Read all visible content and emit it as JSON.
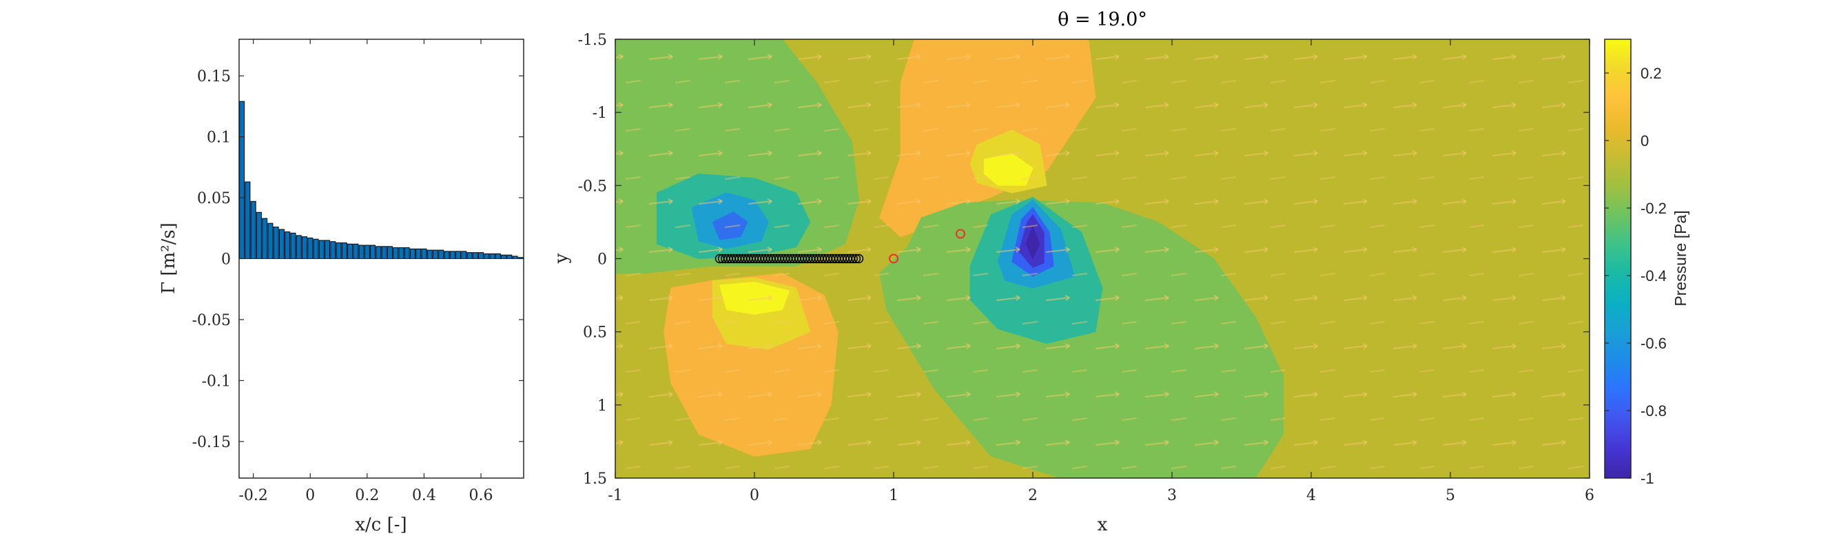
{
  "chart_data": [
    {
      "type": "bar",
      "xlabel": "x/c [-]",
      "ylabel": "Γ [m²/s]",
      "xlim": [
        -0.25,
        0.75
      ],
      "ylim": [
        -0.18,
        0.18
      ],
      "xticks": [
        "-0.2",
        "0",
        "0.2",
        "0.4",
        "0.6"
      ],
      "xtick_values": [
        -0.2,
        0,
        0.2,
        0.4,
        0.6
      ],
      "yticks": [
        "0.15",
        "0.1",
        "0.05",
        "0",
        "-0.05",
        "-0.1",
        "-0.15"
      ],
      "ytick_values": [
        0.15,
        0.1,
        0.05,
        0,
        -0.05,
        -0.1,
        -0.15
      ],
      "bar_color": "#0072BD",
      "grid": false,
      "x": [
        -0.24,
        -0.22,
        -0.2,
        -0.18,
        -0.16,
        -0.14,
        -0.12,
        -0.1,
        -0.08,
        -0.06,
        -0.04,
        -0.02,
        0.0,
        0.02,
        0.04,
        0.06,
        0.08,
        0.1,
        0.12,
        0.14,
        0.16,
        0.18,
        0.2,
        0.22,
        0.24,
        0.26,
        0.28,
        0.3,
        0.32,
        0.34,
        0.36,
        0.38,
        0.4,
        0.42,
        0.44,
        0.46,
        0.48,
        0.5,
        0.52,
        0.54,
        0.56,
        0.58,
        0.6,
        0.62,
        0.64,
        0.66,
        0.68,
        0.7,
        0.72,
        0.74
      ],
      "values": [
        0.129,
        0.063,
        0.047,
        0.038,
        0.033,
        0.029,
        0.026,
        0.024,
        0.022,
        0.021,
        0.019,
        0.018,
        0.017,
        0.016,
        0.015,
        0.015,
        0.014,
        0.013,
        0.013,
        0.012,
        0.012,
        0.011,
        0.011,
        0.011,
        0.01,
        0.01,
        0.01,
        0.009,
        0.009,
        0.009,
        0.008,
        0.008,
        0.008,
        0.007,
        0.007,
        0.007,
        0.006,
        0.006,
        0.006,
        0.006,
        0.005,
        0.005,
        0.005,
        0.004,
        0.004,
        0.004,
        0.003,
        0.003,
        0.002,
        0.001
      ]
    },
    {
      "type": "heatmap",
      "title": "θ = 19.0°",
      "xlabel": "x",
      "ylabel": "y",
      "xlim": [
        -1,
        6
      ],
      "ylim": [
        1.5,
        -1.5
      ],
      "xticks": [
        "-1",
        "0",
        "1",
        "2",
        "3",
        "4",
        "5",
        "6"
      ],
      "xtick_values": [
        -1,
        0,
        1,
        2,
        3,
        4,
        5,
        6
      ],
      "yticks": [
        "-1.5",
        "-1",
        "-0.5",
        "0",
        "0.5",
        "1",
        "1.5"
      ],
      "ytick_values": [
        -1.5,
        -1,
        -0.5,
        0,
        0.5,
        1,
        1.5
      ],
      "background_level": 0,
      "contour_regions": [
        {
          "level": -0.1,
          "color": "#7DC154",
          "polygon": [
            [
              -1,
              -1.5
            ],
            [
              0.2,
              -1.5
            ],
            [
              0.45,
              -1.2
            ],
            [
              0.7,
              -0.8
            ],
            [
              0.75,
              -0.4
            ],
            [
              0.65,
              -0.1
            ],
            [
              0.3,
              0.05
            ],
            [
              -0.3,
              0.05
            ],
            [
              -0.8,
              0.1
            ],
            [
              -1,
              0.1
            ]
          ]
        },
        {
          "level": -0.3,
          "color": "#2EB89A",
          "polygon": [
            [
              -0.7,
              -0.45
            ],
            [
              -0.4,
              -0.58
            ],
            [
              0,
              -0.55
            ],
            [
              0.3,
              -0.45
            ],
            [
              0.4,
              -0.25
            ],
            [
              0.3,
              -0.08
            ],
            [
              0,
              -0.02
            ],
            [
              -0.4,
              0
            ],
            [
              -0.7,
              -0.1
            ]
          ]
        },
        {
          "level": -0.5,
          "color": "#1E9FD2",
          "polygon": [
            [
              -0.45,
              -0.35
            ],
            [
              -0.2,
              -0.45
            ],
            [
              0,
              -0.4
            ],
            [
              0.1,
              -0.25
            ],
            [
              0.05,
              -0.12
            ],
            [
              -0.2,
              -0.07
            ],
            [
              -0.4,
              -0.12
            ]
          ]
        },
        {
          "level": -0.6,
          "color": "#3070EE",
          "polygon": [
            [
              -0.3,
              -0.25
            ],
            [
              -0.15,
              -0.32
            ],
            [
              -0.05,
              -0.25
            ],
            [
              -0.1,
              -0.15
            ],
            [
              -0.25,
              -0.13
            ]
          ]
        },
        {
          "level": 0.1,
          "color": "#F9B43D",
          "polygon": [
            [
              -0.6,
              0.2
            ],
            [
              -0.3,
              0.15
            ],
            [
              0.2,
              0.1
            ],
            [
              0.5,
              0.25
            ],
            [
              0.6,
              0.5
            ],
            [
              0.55,
              1.0
            ],
            [
              0.4,
              1.3
            ],
            [
              0.0,
              1.35
            ],
            [
              -0.4,
              1.2
            ],
            [
              -0.6,
              0.85
            ],
            [
              -0.65,
              0.5
            ]
          ]
        },
        {
          "level": 0.2,
          "color": "#E7D72A",
          "polygon": [
            [
              -0.3,
              0.15
            ],
            [
              0,
              0.13
            ],
            [
              0.3,
              0.2
            ],
            [
              0.4,
              0.5
            ],
            [
              0.1,
              0.62
            ],
            [
              -0.2,
              0.58
            ],
            [
              -0.3,
              0.4
            ]
          ]
        },
        {
          "level": 0.25,
          "color": "#F7F51E",
          "polygon": [
            [
              -0.25,
              0.18
            ],
            [
              0,
              0.16
            ],
            [
              0.25,
              0.22
            ],
            [
              0.2,
              0.35
            ],
            [
              0,
              0.38
            ],
            [
              -0.2,
              0.35
            ]
          ]
        },
        {
          "level": 0.1,
          "color": "#F9B43D",
          "polygon": [
            [
              1.15,
              -1.5
            ],
            [
              2.4,
              -1.5
            ],
            [
              2.45,
              -1.1
            ],
            [
              2.1,
              -0.6
            ],
            [
              1.7,
              -0.42
            ],
            [
              1.4,
              -0.32
            ],
            [
              1.2,
              -0.2
            ],
            [
              1.05,
              -0.15
            ],
            [
              0.9,
              -0.28
            ],
            [
              1.05,
              -0.7
            ],
            [
              1.05,
              -1.2
            ]
          ]
        },
        {
          "level": 0.2,
          "color": "#E7D72A",
          "polygon": [
            [
              1.6,
              -0.78
            ],
            [
              1.85,
              -0.88
            ],
            [
              2.05,
              -0.78
            ],
            [
              2.1,
              -0.5
            ],
            [
              1.85,
              -0.45
            ],
            [
              1.6,
              -0.52
            ],
            [
              1.55,
              -0.65
            ]
          ]
        },
        {
          "level": 0.25,
          "color": "#F7F51E",
          "polygon": [
            [
              1.65,
              -0.68
            ],
            [
              1.85,
              -0.72
            ],
            [
              2.0,
              -0.62
            ],
            [
              1.95,
              -0.5
            ],
            [
              1.75,
              -0.5
            ],
            [
              1.65,
              -0.58
            ]
          ]
        },
        {
          "level": -0.1,
          "color": "#7DC154",
          "polygon": [
            [
              1.2,
              -0.28
            ],
            [
              1.5,
              -0.38
            ],
            [
              1.9,
              -0.4
            ],
            [
              2.5,
              -0.38
            ],
            [
              2.9,
              -0.25
            ],
            [
              3.3,
              0.0
            ],
            [
              3.6,
              0.4
            ],
            [
              3.8,
              0.8
            ],
            [
              3.8,
              1.2
            ],
            [
              3.6,
              1.5
            ],
            [
              2.2,
              1.5
            ],
            [
              1.7,
              1.35
            ],
            [
              1.3,
              0.9
            ],
            [
              0.95,
              0.35
            ],
            [
              0.9,
              0.1
            ],
            [
              1.1,
              -0.08
            ]
          ]
        },
        {
          "level": -0.3,
          "color": "#2EB89A",
          "polygon": [
            [
              1.55,
              0.05
            ],
            [
              1.7,
              -0.3
            ],
            [
              2.0,
              -0.42
            ],
            [
              2.35,
              -0.18
            ],
            [
              2.5,
              0.2
            ],
            [
              2.45,
              0.5
            ],
            [
              2.1,
              0.58
            ],
            [
              1.75,
              0.48
            ],
            [
              1.55,
              0.28
            ]
          ]
        },
        {
          "level": -0.5,
          "color": "#1E9FD2",
          "polygon": [
            [
              1.75,
              0.02
            ],
            [
              1.85,
              -0.3
            ],
            [
              2.0,
              -0.4
            ],
            [
              2.2,
              -0.2
            ],
            [
              2.3,
              0.12
            ],
            [
              2.0,
              0.2
            ],
            [
              1.8,
              0.15
            ]
          ]
        },
        {
          "level": -0.65,
          "color": "#3461F4",
          "polygon": [
            [
              1.85,
              0.02
            ],
            [
              1.92,
              -0.27
            ],
            [
              2.0,
              -0.35
            ],
            [
              2.12,
              -0.18
            ],
            [
              2.15,
              0.05
            ],
            [
              2.0,
              0.12
            ]
          ]
        },
        {
          "level": -0.8,
          "color": "#4334C8",
          "polygon": [
            [
              1.9,
              -0.05
            ],
            [
              1.96,
              -0.25
            ],
            [
              2.0,
              -0.3
            ],
            [
              2.08,
              -0.18
            ],
            [
              2.08,
              0.03
            ],
            [
              2.0,
              0.06
            ]
          ]
        },
        {
          "level": -0.95,
          "color": "#3D26A8",
          "polygon": [
            [
              1.95,
              -0.1
            ],
            [
              2.0,
              -0.22
            ],
            [
              2.05,
              -0.1
            ],
            [
              2.0,
              0.0
            ]
          ]
        }
      ],
      "plate_markers": {
        "x_start": -0.25,
        "x_end": 0.75,
        "count": 50,
        "y": 0,
        "color": "#000000"
      },
      "wake_markers": [
        {
          "x": 1.0,
          "y": 0.0
        },
        {
          "x": 1.48,
          "y": -0.17
        }
      ],
      "wake_marker_color": "#E8312C"
    },
    {
      "type": "colorbar",
      "label": "Pressure [Pa]",
      "range": [
        -1,
        0.3
      ],
      "ticks": [
        "0.2",
        "0",
        "-0.2",
        "-0.4",
        "-0.6",
        "-0.8",
        "-1"
      ],
      "tick_values": [
        0.2,
        0,
        -0.2,
        -0.4,
        -0.6,
        -0.8,
        -1
      ],
      "colormap": [
        "#3E26A8",
        "#4535D4",
        "#4254EE",
        "#2E72FF",
        "#1E8BE8",
        "#1A9FD6",
        "#0AB0C3",
        "#1ABAA6",
        "#3FC28A",
        "#6EC360",
        "#A0C040",
        "#C8BC33",
        "#EBBA2D",
        "#FFC23C",
        "#F2D82C",
        "#F9FA14"
      ]
    }
  ]
}
